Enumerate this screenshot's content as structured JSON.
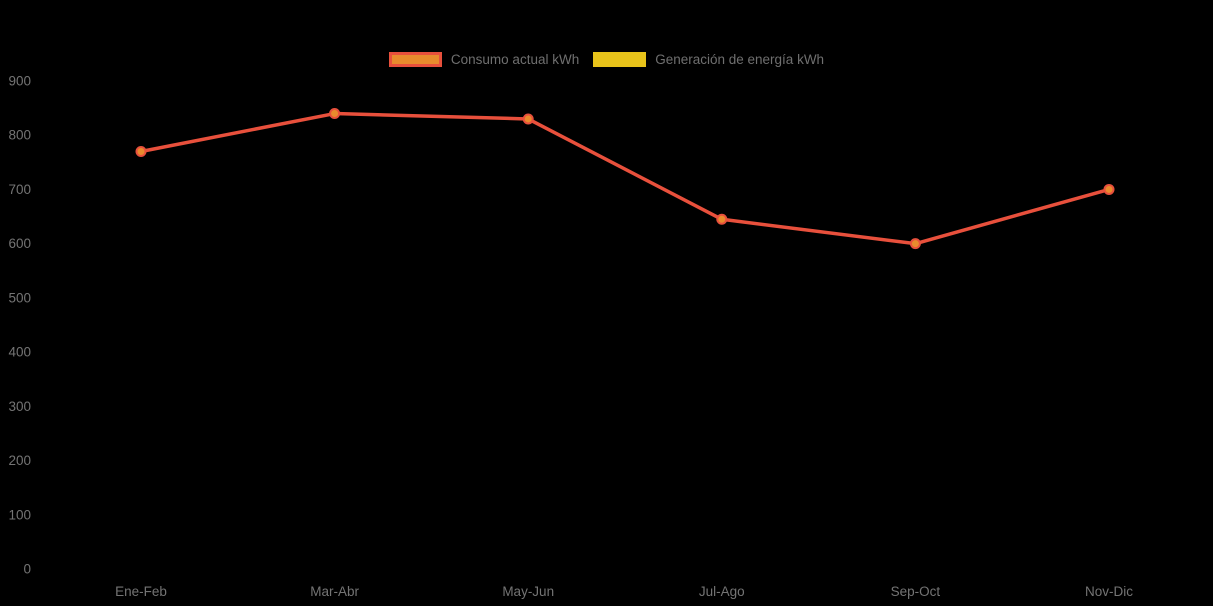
{
  "colors": {
    "background": "#000000",
    "axis_text": "#747474",
    "legend_text": "#6f6f6f",
    "consumption_line": "#e8503c",
    "consumption_marker_fill": "#e98b2d",
    "generation_color": "#e8c31a"
  },
  "legend": {
    "items": [
      {
        "label": "Consumo actual kWh",
        "fill": "#e98b2d",
        "border": "#e8503c"
      },
      {
        "label": "Generación de energía kWh",
        "fill": "#e8c31a",
        "border": "#e8c31a"
      }
    ]
  },
  "chart_data": {
    "type": "line",
    "categories": [
      "Ene-Feb",
      "Mar-Abr",
      "May-Jun",
      "Jul-Ago",
      "Sep-Oct",
      "Nov-Dic"
    ],
    "series": [
      {
        "name": "Consumo actual kWh",
        "values": [
          770,
          840,
          830,
          645,
          600,
          700
        ],
        "line_color": "#e8503c",
        "marker_fill": "#e98b2d",
        "marker_border": "#e8503c",
        "visible": true
      },
      {
        "name": "Generación de energía kWh",
        "values": [],
        "line_color": "#e8c31a",
        "marker_fill": "#e8c31a",
        "marker_border": "#e8c31a",
        "visible": false
      }
    ],
    "title": "",
    "xlabel": "",
    "ylabel": "",
    "ylim": [
      0,
      900
    ],
    "y_ticks": [
      0,
      100,
      200,
      300,
      400,
      500,
      600,
      700,
      800,
      900
    ],
    "grid": false,
    "legend_position": "top"
  }
}
